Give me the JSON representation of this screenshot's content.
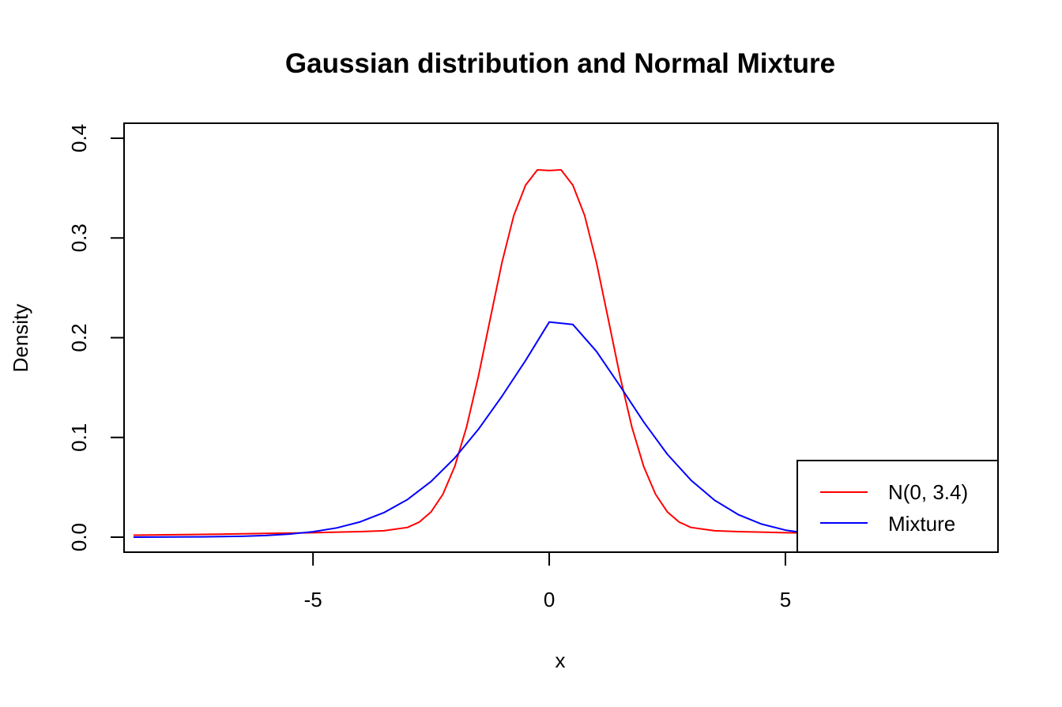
{
  "chart_data": {
    "type": "line",
    "title": "Gaussian distribution and Normal Mixture",
    "xlabel": "x",
    "ylabel": "Density",
    "xlim": [
      -9.0,
      9.5
    ],
    "ylim": [
      -0.015,
      0.415
    ],
    "x_ticks": [
      -5,
      0,
      5
    ],
    "x_tick_labels": [
      "-5",
      "0",
      "5"
    ],
    "y_ticks": [
      0.0,
      0.1,
      0.2,
      0.3,
      0.4
    ],
    "y_tick_labels": [
      "0.0",
      "0.1",
      "0.2",
      "0.3",
      "0.4"
    ],
    "grid": false,
    "legend_position": "bottom-right",
    "series": [
      {
        "name": "N(0, 3.4)",
        "color": "#ff0000",
        "x": [
          -8.8,
          -7.0,
          -6.0,
          -5.0,
          -4.5,
          -4.0,
          -3.5,
          -3.0,
          -2.75,
          -2.5,
          -2.25,
          -2.0,
          -1.75,
          -1.5,
          -1.25,
          -1.0,
          -0.75,
          -0.5,
          -0.25,
          0.0,
          0.25,
          0.5,
          0.75,
          1.0,
          1.25,
          1.5,
          1.75,
          2.0,
          2.25,
          2.5,
          2.75,
          3.0,
          3.5,
          4.0,
          4.5,
          5.0,
          5.5,
          6.0,
          6.2
        ],
        "y": [
          0.002,
          0.003,
          0.0038,
          0.0045,
          0.0051,
          0.0056,
          0.0065,
          0.0098,
          0.0152,
          0.0254,
          0.0431,
          0.0709,
          0.1104,
          0.1611,
          0.2186,
          0.2754,
          0.3225,
          0.3529,
          0.3683,
          0.3676,
          0.3683,
          0.3529,
          0.3225,
          0.2754,
          0.2186,
          0.1611,
          0.1104,
          0.0709,
          0.0431,
          0.0254,
          0.0152,
          0.0098,
          0.0065,
          0.0056,
          0.0051,
          0.0045,
          0.0042,
          0.0039,
          0.0038
        ]
      },
      {
        "name": "Mixture",
        "color": "#0000ff",
        "x": [
          -8.8,
          -7.5,
          -6.5,
          -6.0,
          -5.5,
          -5.0,
          -4.5,
          -4.0,
          -3.5,
          -3.0,
          -2.5,
          -2.0,
          -1.5,
          -1.0,
          -0.5,
          0.0,
          0.5,
          1.0,
          1.5,
          2.0,
          2.5,
          3.0,
          3.5,
          4.0,
          4.5,
          5.0,
          5.5,
          6.0
        ],
        "y": [
          0.0,
          0.0003,
          0.0009,
          0.0017,
          0.0031,
          0.0055,
          0.0093,
          0.0154,
          0.0246,
          0.0378,
          0.0559,
          0.0794,
          0.1081,
          0.1413,
          0.1772,
          0.2157,
          0.2133,
          0.1863,
          0.1515,
          0.1155,
          0.0832,
          0.0572,
          0.0371,
          0.0227,
          0.0131,
          0.0071,
          0.0037,
          0.0018
        ]
      }
    ]
  }
}
